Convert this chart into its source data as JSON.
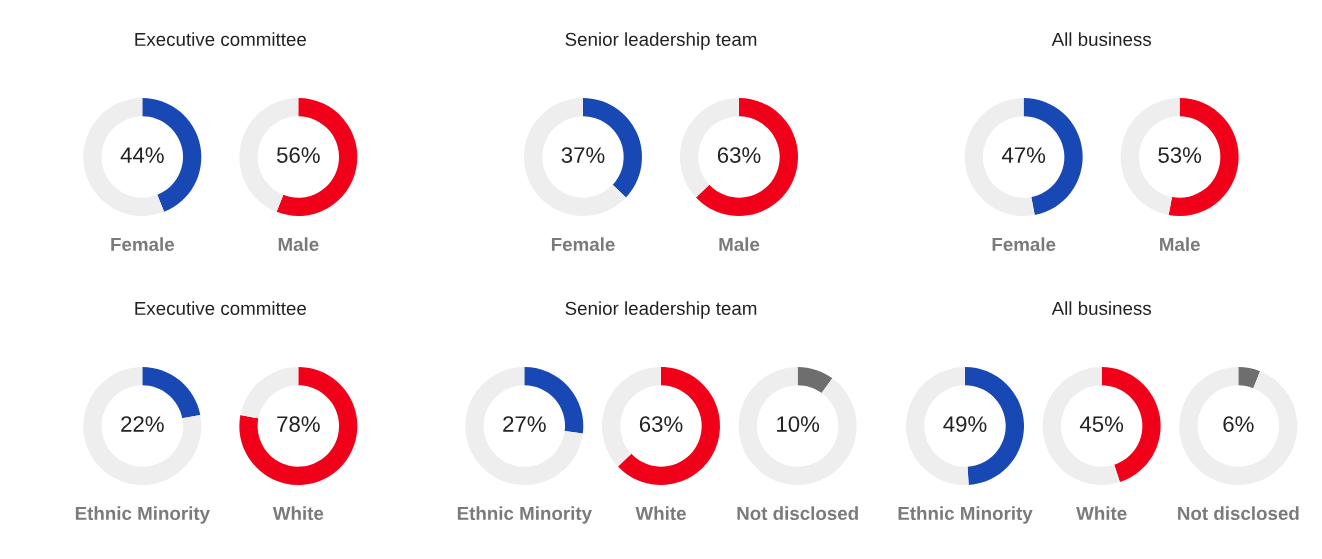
{
  "chart_data": [
    {
      "type": "donut",
      "title": "Executive committee",
      "categories": [
        null,
        null
      ],
      "series": [
        {
          "name": "Female",
          "values": [
            44,
            56
          ],
          "colors": [
            "#1848b4",
            "#eeeeee"
          ],
          "value_labels": [
            "44%",
            null
          ]
        },
        {
          "name": "Male",
          "values": [
            56,
            44
          ],
          "colors": [
            "#f00019",
            "#eeeeee"
          ],
          "value_labels": [
            "56%",
            null
          ]
        }
      ]
    },
    {
      "type": "donut",
      "title": "Senior leadership team",
      "categories": [
        null,
        null
      ],
      "series": [
        {
          "name": "Female",
          "values": [
            37,
            63
          ],
          "colors": [
            "#1848b4",
            "#eeeeee"
          ],
          "value_labels": [
            "37%",
            null
          ]
        },
        {
          "name": "Male",
          "values": [
            63,
            37
          ],
          "colors": [
            "#f00019",
            "#eeeeee"
          ],
          "value_labels": [
            "63%",
            null
          ]
        }
      ]
    },
    {
      "type": "donut",
      "title": "All business",
      "categories": [
        null,
        null
      ],
      "series": [
        {
          "name": "Female",
          "values": [
            47,
            53
          ],
          "colors": [
            "#1848b4",
            "#eeeeee"
          ],
          "value_labels": [
            "47%",
            null
          ]
        },
        {
          "name": "Male",
          "values": [
            53,
            47
          ],
          "colors": [
            "#f00019",
            "#eeeeee"
          ],
          "value_labels": [
            "53%",
            null
          ]
        }
      ]
    },
    {
      "type": "donut",
      "title": "Executive committee",
      "categories": [
        null,
        null
      ],
      "series": [
        {
          "name": "Ethnic Minority",
          "values": [
            22,
            78
          ],
          "colors": [
            "#1848b4",
            "#eeeeee"
          ],
          "value_labels": [
            "22%",
            null
          ]
        },
        {
          "name": "White",
          "values": [
            78,
            22
          ],
          "colors": [
            "#f00019",
            "#eeeeee"
          ],
          "value_labels": [
            "78%",
            null
          ]
        }
      ]
    },
    {
      "type": "donut",
      "title": "Senior leadership team",
      "categories": [
        null,
        null
      ],
      "series": [
        {
          "name": "Ethnic Minority",
          "values": [
            27,
            73
          ],
          "colors": [
            "#1848b4",
            "#eeeeee"
          ],
          "value_labels": [
            "27%",
            null
          ]
        },
        {
          "name": "White",
          "values": [
            63,
            37
          ],
          "colors": [
            "#f00019",
            "#eeeeee"
          ],
          "value_labels": [
            "63%",
            null
          ]
        },
        {
          "name": "Not disclosed",
          "values": [
            10,
            90
          ],
          "colors": [
            "#6e6e6e",
            "#eeeeee"
          ],
          "value_labels": [
            "10%",
            null
          ]
        }
      ]
    },
    {
      "type": "donut",
      "title": "All business",
      "categories": [
        null,
        null
      ],
      "series": [
        {
          "name": "Ethnic Minority",
          "values": [
            49,
            51
          ],
          "colors": [
            "#1848b4",
            "#eeeeee"
          ],
          "value_labels": [
            "49%",
            null
          ]
        },
        {
          "name": "White",
          "values": [
            45,
            55
          ],
          "colors": [
            "#f00019",
            "#eeeeee"
          ],
          "value_labels": [
            "45%",
            null
          ]
        },
        {
          "name": "Not disclosed",
          "values": [
            6,
            94
          ],
          "colors": [
            "#6e6e6e",
            "#eeeeee"
          ],
          "value_labels": [
            "6%",
            null
          ]
        }
      ]
    }
  ]
}
